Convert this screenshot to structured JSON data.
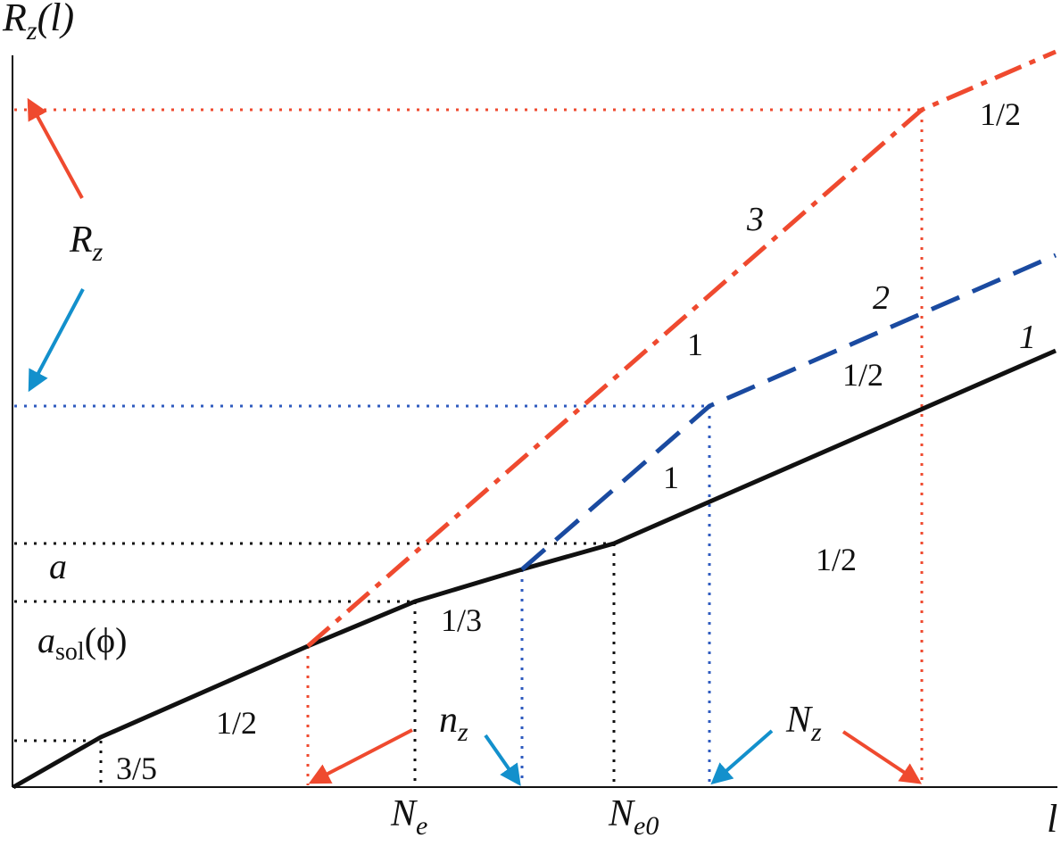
{
  "colors": {
    "black": "#111111",
    "red": "#ef4a2f",
    "blue": "#1a4aa0",
    "cyan": "#1390cc",
    "dot_blue": "#2f5bbf"
  },
  "axes": {
    "y_label": {
      "main": "R",
      "sub": "z",
      "paren": "(l)"
    },
    "x_label": "l"
  },
  "curve_labels": {
    "c1": "1",
    "c2": "2",
    "c3": "3"
  },
  "slopes": {
    "s_35": "3/5",
    "s_half_low": "1/2",
    "s_third": "1/3",
    "s_half_mid": "1/2",
    "s_one_blue": "1",
    "s_half_blue": "1/2",
    "s_one_red": "1",
    "s_half_red": "1/2"
  },
  "y_marks": {
    "a": "a",
    "asol": {
      "main": "a",
      "sub": "sol",
      "tail": "(ϕ)"
    },
    "rz": {
      "main": "R",
      "sub": "z"
    }
  },
  "x_marks": {
    "ne": {
      "main": "N",
      "sub": "e"
    },
    "ne0": {
      "main": "N",
      "sub": "e0"
    },
    "nz_small": {
      "main": "n",
      "sub": "z"
    },
    "nz_big": {
      "main": "N",
      "sub": "z"
    }
  }
}
